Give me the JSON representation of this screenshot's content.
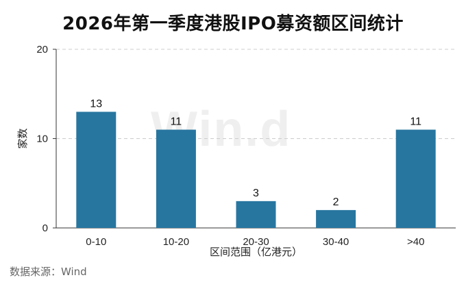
{
  "header": {
    "title": "2026年第一季度港股IPO募资额区间统计"
  },
  "watermark": "Win.d",
  "footer": {
    "source": "数据来源：Wind"
  },
  "colors": {
    "bar": "#2776a0",
    "grid": "#cccccc",
    "axis": "#333333"
  },
  "chart_data": {
    "type": "bar",
    "categories": [
      "0-10",
      "10-20",
      "20-30",
      "30-40",
      ">40"
    ],
    "values": [
      13,
      11,
      3,
      2,
      11
    ],
    "data_labels": [
      "13",
      "11",
      "3",
      "2",
      "11"
    ],
    "xlabel": "区间范围（亿港元）",
    "ylabel": "家数",
    "ylim": [
      0,
      20
    ],
    "yticks": [
      0,
      10,
      20
    ],
    "grid": true,
    "legend": "none"
  }
}
